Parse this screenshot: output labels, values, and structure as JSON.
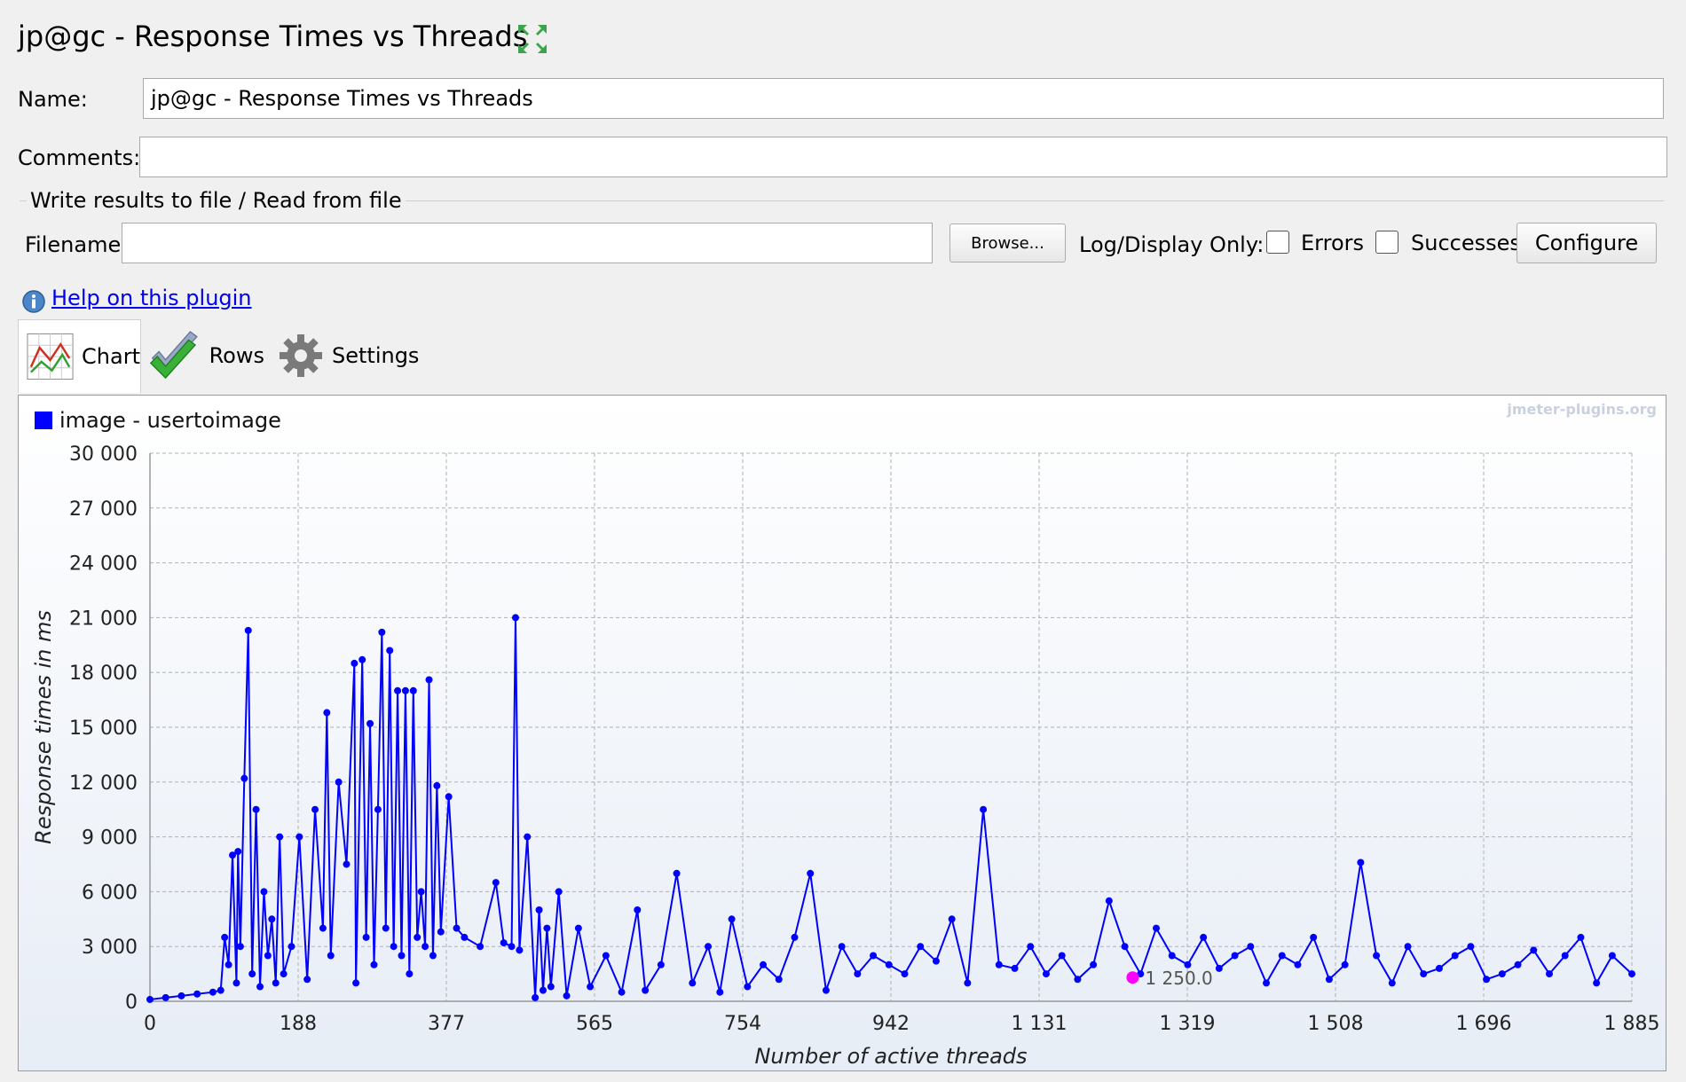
{
  "window": {
    "title": "jp@gc - Response Times vs Threads",
    "expand_icon": "expand-arrows-icon"
  },
  "form": {
    "name_label": "Name:",
    "name_value": "jp@gc - Response Times vs Threads",
    "comments_label": "Comments:",
    "comments_value": "",
    "file_group_title": "Write results to file / Read from file",
    "filename_label": "Filename",
    "filename_value": "",
    "browse_label": "Browse...",
    "log_display_label": "Log/Display Only:",
    "errors_label": "Errors",
    "successes_label": "Successes",
    "configure_label": "Configure"
  },
  "help": {
    "icon": "info-icon",
    "link_text": "Help on this plugin"
  },
  "tabs": [
    {
      "label": "Chart",
      "icon": "line-chart-icon",
      "active": true
    },
    {
      "label": "Rows",
      "icon": "checkmark-icon",
      "active": false
    },
    {
      "label": "Settings",
      "icon": "gear-icon",
      "active": false
    }
  ],
  "colors": {
    "series": "#0000ff",
    "marker": "#ff00ff",
    "grid": "#b0b0b0"
  },
  "chart_data": {
    "type": "line",
    "watermark": "jmeter-plugins.org",
    "xlabel": "Number of active threads",
    "ylabel": "Response times in ms",
    "xlim": [
      0,
      1885
    ],
    "ylim": [
      0,
      30000
    ],
    "x_ticks": [
      "0",
      "188",
      "377",
      "565",
      "754",
      "942",
      "1 131",
      "1 319",
      "1 508",
      "1 696",
      "1 885"
    ],
    "y_ticks": [
      "0",
      "3 000",
      "6 000",
      "9 000",
      "12 000",
      "15 000",
      "18 000",
      "21 000",
      "24 000",
      "27 000",
      "30 000"
    ],
    "grid": true,
    "legend_position": "top-left",
    "series": [
      {
        "name": "image - usertoimage",
        "x": [
          0,
          20,
          40,
          60,
          80,
          90,
          95,
          100,
          105,
          110,
          112,
          115,
          120,
          125,
          130,
          135,
          140,
          145,
          150,
          155,
          160,
          165,
          170,
          180,
          190,
          200,
          210,
          220,
          225,
          230,
          240,
          250,
          260,
          262,
          270,
          275,
          280,
          285,
          290,
          295,
          300,
          305,
          310,
          315,
          320,
          325,
          330,
          335,
          340,
          345,
          350,
          355,
          360,
          365,
          370,
          380,
          390,
          400,
          420,
          440,
          450,
          460,
          465,
          470,
          480,
          490,
          495,
          500,
          505,
          510,
          520,
          530,
          545,
          560,
          580,
          600,
          620,
          630,
          650,
          670,
          690,
          710,
          725,
          740,
          760,
          780,
          800,
          820,
          840,
          860,
          880,
          900,
          920,
          940,
          960,
          980,
          1000,
          1020,
          1040,
          1060,
          1080,
          1100,
          1120,
          1140,
          1160,
          1180,
          1200,
          1220,
          1240,
          1260,
          1280,
          1300,
          1320,
          1340,
          1360,
          1380,
          1400,
          1420,
          1440,
          1460,
          1480,
          1500,
          1520,
          1540,
          1560,
          1580,
          1600,
          1620,
          1640,
          1660,
          1680,
          1700,
          1720,
          1740,
          1760,
          1780,
          1800,
          1820,
          1840,
          1860,
          1885
        ],
        "values": [
          100,
          200,
          300,
          400,
          500,
          600,
          3500,
          2000,
          8000,
          1000,
          8200,
          3000,
          12200,
          20300,
          1500,
          10500,
          800,
          6000,
          2500,
          4500,
          1000,
          9000,
          1500,
          3000,
          9000,
          1200,
          10500,
          4000,
          15800,
          2500,
          12000,
          7500,
          18500,
          1000,
          18700,
          3500,
          15200,
          2000,
          10500,
          20200,
          4000,
          19200,
          3000,
          17000,
          2500,
          17000,
          1500,
          17000,
          3500,
          6000,
          3000,
          17600,
          2500,
          11800,
          3800,
          11200,
          4000,
          3500,
          3000,
          6500,
          3200,
          3000,
          21000,
          2800,
          9000,
          200,
          5000,
          600,
          4000,
          800,
          6000,
          300,
          4000,
          800,
          2500,
          500,
          5000,
          600,
          2000,
          7000,
          1000,
          3000,
          500,
          4500,
          800,
          2000,
          1200,
          3500,
          7000,
          600,
          3000,
          1500,
          2500,
          2000,
          1500,
          3000,
          2200,
          4500,
          1000,
          10500,
          2000,
          1800,
          3000,
          1500,
          2500,
          1200,
          2000,
          5500,
          3000,
          1500,
          4000,
          2500,
          2000,
          3500,
          1800,
          2500,
          3000,
          1000,
          2500,
          2000,
          3500,
          1200,
          2000,
          7600,
          2500,
          1000,
          3000,
          1500,
          1800,
          2500,
          3000,
          1200,
          1500,
          2000,
          2800,
          1500,
          2500,
          3500,
          1000,
          2500,
          1500
        ]
      }
    ],
    "highlight_point": {
      "x": 1250,
      "y": 1300,
      "label": "1 250.0"
    }
  }
}
